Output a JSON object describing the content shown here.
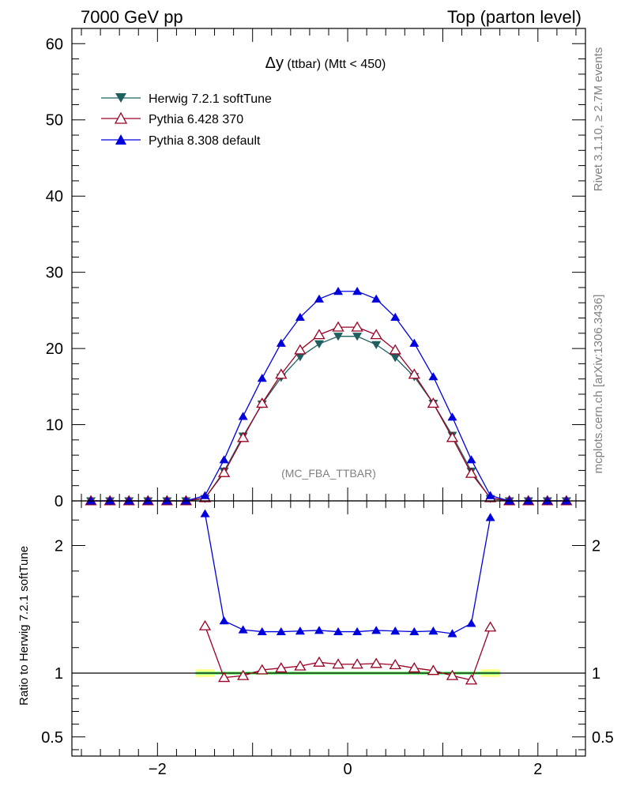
{
  "header": {
    "left": "7000 GeV pp",
    "right": "Top (parton level)"
  },
  "side_labels": {
    "rivet": "Rivet 3.1.10, ≥ 2.7M events",
    "mcplots": "mcplots.cern.ch [arXiv:1306.3436]"
  },
  "main_panel": {
    "title_main": "Δy",
    "title_rest": " (ttbar) (Mtt < 450)",
    "watermark": "(MC_FBA_TTBAR)"
  },
  "ratio_panel": {
    "ylabel": "Ratio to Herwig 7.2.1 softTune"
  },
  "colors": {
    "herwig": "#1f5f5f",
    "pythia6": "#990022",
    "pythia8": "#0000dd",
    "band_inner": "#7cff7c",
    "band_outer": "#ffff88"
  },
  "chart_data": [
    {
      "type": "line",
      "title": "Δy (ttbar) (Mtt < 450)",
      "xlim": [
        -2.9,
        2.5
      ],
      "ylim": [
        0,
        62
      ],
      "xticks": [
        -2,
        0,
        2
      ],
      "yticks": [
        0,
        10,
        20,
        30,
        40,
        50,
        60
      ],
      "x": [
        -2.7,
        -2.5,
        -2.3,
        -2.1,
        -1.9,
        -1.7,
        -1.5,
        -1.3,
        -1.1,
        -0.9,
        -0.7,
        -0.5,
        -0.3,
        -0.1,
        0.1,
        0.3,
        0.5,
        0.7,
        0.9,
        1.1,
        1.3,
        1.5,
        1.7,
        1.9,
        2.1,
        2.3
      ],
      "series": [
        {
          "name": "Herwig 7.2.1 softTune",
          "marker": "triangle-down",
          "values": [
            0,
            0,
            0,
            0,
            0,
            0,
            0.3,
            3.9,
            8.5,
            12.7,
            16.2,
            18.9,
            20.6,
            21.6,
            21.6,
            20.5,
            18.8,
            16.3,
            12.8,
            8.6,
            3.9,
            0.3,
            0,
            0,
            0,
            0
          ]
        },
        {
          "name": "Pythia 6.428 370",
          "marker": "triangle-open",
          "values": [
            0,
            0,
            0,
            0,
            0,
            0,
            0.4,
            3.7,
            8.3,
            12.8,
            16.6,
            19.8,
            21.8,
            22.8,
            22.8,
            21.8,
            19.8,
            16.6,
            12.8,
            8.3,
            3.6,
            0.4,
            0,
            0,
            0,
            0
          ]
        },
        {
          "name": "Pythia 8.308 default",
          "marker": "triangle-up",
          "values": [
            0,
            0,
            0,
            0,
            0,
            0,
            0.7,
            5.4,
            11.1,
            16.1,
            20.7,
            24.1,
            26.5,
            27.5,
            27.5,
            26.5,
            24.1,
            20.7,
            16.3,
            11.0,
            5.4,
            0.7,
            0,
            0,
            0,
            0
          ]
        }
      ]
    },
    {
      "type": "line",
      "ylabel": "Ratio to Herwig 7.2.1 softTune",
      "xlim": [
        -2.9,
        2.5
      ],
      "ylim": [
        0.35,
        2.35
      ],
      "xticks": [
        -2,
        0,
        2
      ],
      "yticks": [
        0.5,
        1,
        2
      ],
      "x": [
        -1.5,
        -1.3,
        -1.1,
        -0.9,
        -0.7,
        -0.5,
        -0.3,
        -0.1,
        0.1,
        0.3,
        0.5,
        0.7,
        0.9,
        1.1,
        1.3,
        1.5
      ],
      "series": [
        {
          "name": "Pythia 6.428 370",
          "marker": "triangle-open",
          "values": [
            1.37,
            0.965,
            0.98,
            1.025,
            1.04,
            1.055,
            1.085,
            1.07,
            1.07,
            1.075,
            1.065,
            1.04,
            1.02,
            0.98,
            0.945,
            1.36
          ]
        },
        {
          "name": "Pythia 8.308 default",
          "marker": "triangle-up",
          "values": [
            2.25,
            1.41,
            1.34,
            1.325,
            1.325,
            1.33,
            1.335,
            1.325,
            1.325,
            1.335,
            1.33,
            1.325,
            1.33,
            1.31,
            1.39,
            2.22
          ]
        }
      ]
    }
  ]
}
